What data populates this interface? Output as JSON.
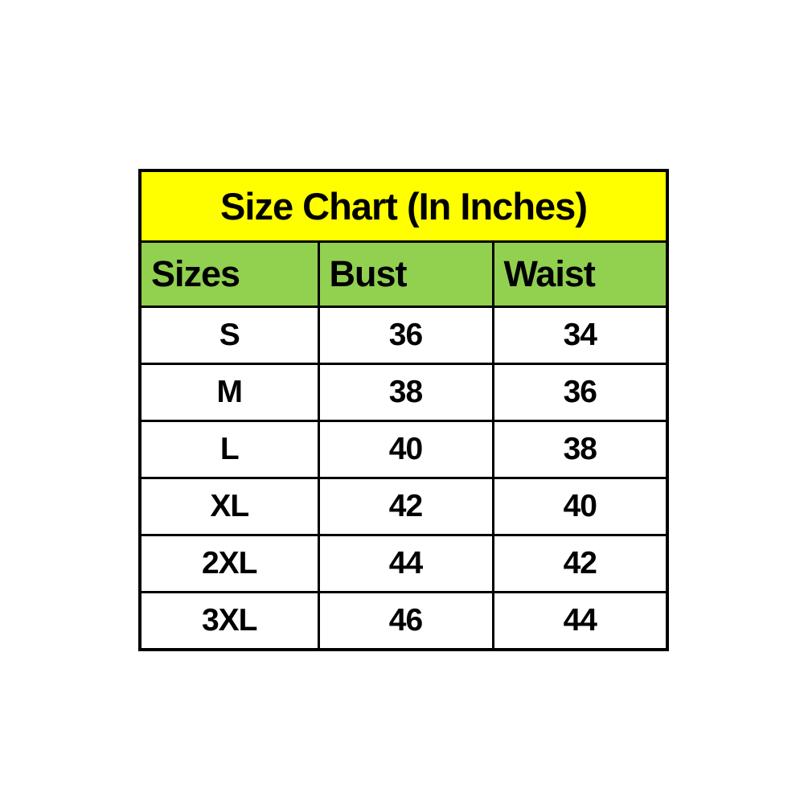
{
  "colors": {
    "page_bg": "#ffffff",
    "title_bg": "#ffff00",
    "header_bg": "#92d050",
    "row_bg": "#ffffff",
    "border": "#000000",
    "text": "#000000"
  },
  "chart_data": {
    "type": "table",
    "title": "Size Chart (In Inches)",
    "unit": "inches",
    "columns": [
      "Sizes",
      "Bust",
      "Waist"
    ],
    "rows": [
      [
        "S",
        36,
        34
      ],
      [
        "M",
        38,
        36
      ],
      [
        "L",
        40,
        38
      ],
      [
        "XL",
        42,
        40
      ],
      [
        "2XL",
        44,
        42
      ],
      [
        "3XL",
        46,
        44
      ]
    ]
  }
}
